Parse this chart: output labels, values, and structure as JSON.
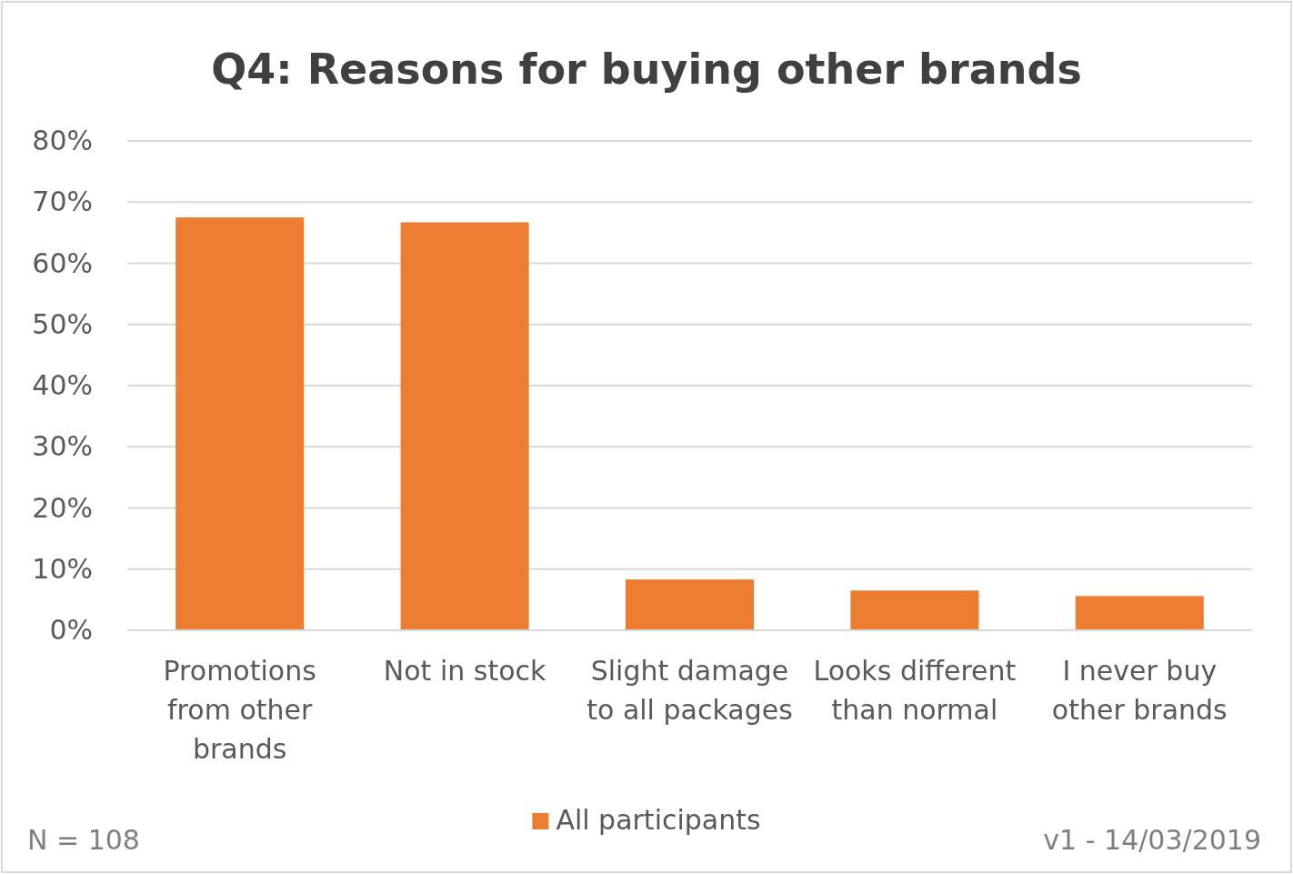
{
  "chart_data": {
    "type": "bar",
    "title": "Q4: Reasons for buying other brands",
    "categories": [
      "Promotions from other brands",
      "Not in stock",
      "Slight damage to all packages",
      "Looks different than normal",
      "I never buy other brands"
    ],
    "series": [
      {
        "name": "All participants",
        "color": "#ed7d31",
        "values": [
          67.5,
          66.7,
          8.3,
          6.5,
          5.6
        ]
      }
    ],
    "ylim": [
      0,
      80
    ],
    "yticks": [
      {
        "value": 0,
        "label": "0%"
      },
      {
        "value": 10,
        "label": "10%"
      },
      {
        "value": 20,
        "label": "20%"
      },
      {
        "value": 30,
        "label": "30%"
      },
      {
        "value": 40,
        "label": "40%"
      },
      {
        "value": 50,
        "label": "50%"
      },
      {
        "value": 60,
        "label": "60%"
      },
      {
        "value": 70,
        "label": "70%"
      },
      {
        "value": 80,
        "label": "80%"
      }
    ],
    "grid": "y",
    "legend": "bottom",
    "annotations": [
      "N = 108",
      "v1 - 14/03/2019"
    ]
  }
}
